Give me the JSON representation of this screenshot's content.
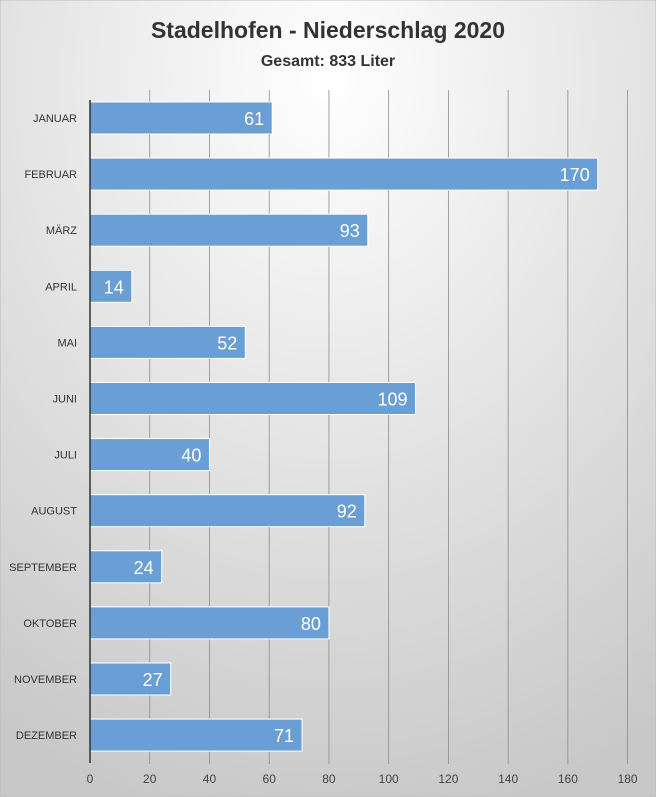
{
  "chart_data": {
    "type": "bar",
    "orientation": "horizontal",
    "title": "Stadelhofen - Niederschlag 2020",
    "subtitle": "Gesamt: 833 Liter",
    "xlabel": "",
    "ylabel": "",
    "categories": [
      "JANUAR",
      "FEBRUAR",
      "MÄRZ",
      "APRIL",
      "MAI",
      "JUNI",
      "JULI",
      "AUGUST",
      "SEPTEMBER",
      "OKTOBER",
      "NOVEMBER",
      "DEZEMBER"
    ],
    "values": [
      61,
      170,
      93,
      14,
      52,
      109,
      40,
      92,
      24,
      80,
      27,
      71
    ],
    "xlim": [
      0,
      180
    ],
    "xticks": [
      0,
      20,
      40,
      60,
      80,
      100,
      120,
      140,
      160,
      180
    ],
    "grid": true,
    "legend": "none",
    "colors": {
      "bar": "#6a9fd6",
      "bar_edge": "#ffffff",
      "label": "#ffffff",
      "grid": "#8c8c8c",
      "axis": "#333333",
      "title": "#333333"
    }
  }
}
